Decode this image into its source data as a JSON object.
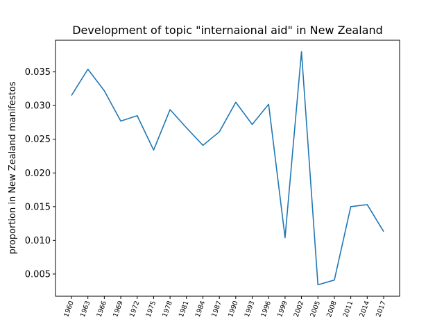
{
  "chart_data": {
    "type": "line",
    "title": "Development of topic \"internaional aid\" in New Zealand",
    "xlabel": "",
    "ylabel": "proportion in New Zealand manifestos",
    "categories": [
      "1960",
      "1963",
      "1966",
      "1969",
      "1972",
      "1975",
      "1978",
      "1981",
      "1984",
      "1987",
      "1990",
      "1993",
      "1996",
      "1999",
      "2002",
      "2005",
      "2008",
      "2011",
      "2014",
      "2017"
    ],
    "series": [
      {
        "values": [
          0.0315,
          0.0354,
          0.0322,
          0.0277,
          0.0285,
          0.0234,
          0.0294,
          0.0267,
          0.0241,
          0.0261,
          0.0305,
          0.0272,
          0.0302,
          0.0104,
          0.038,
          0.0034,
          0.0041,
          0.015,
          0.0153,
          0.0113
        ],
        "color": "#1f77b4"
      }
    ],
    "yticks": [
      "0.005",
      "0.010",
      "0.015",
      "0.020",
      "0.025",
      "0.030",
      "0.035"
    ],
    "ylim": [
      0.0017,
      0.0397
    ],
    "grid": false,
    "xtick_rotation": "vertical-tilted"
  }
}
